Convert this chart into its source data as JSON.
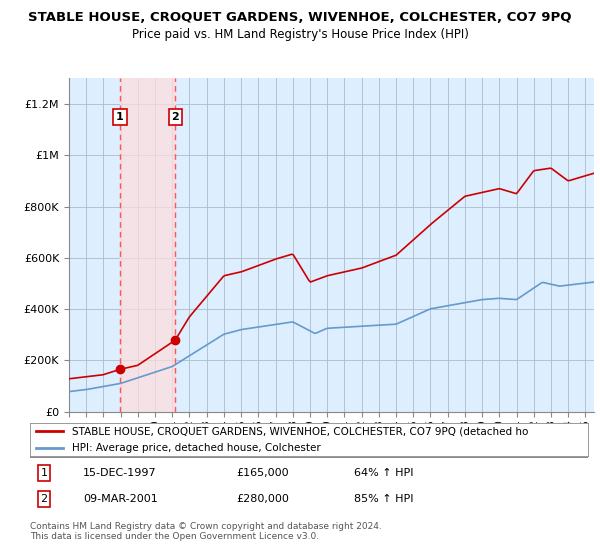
{
  "title": "STABLE HOUSE, CROQUET GARDENS, WIVENHOE, COLCHESTER, CO7 9PQ",
  "subtitle": "Price paid vs. HM Land Registry's House Price Index (HPI)",
  "title_fontsize": 9.5,
  "subtitle_fontsize": 8.5,
  "ylim": [
    0,
    1300000
  ],
  "yticks": [
    0,
    200000,
    400000,
    600000,
    800000,
    1000000,
    1200000
  ],
  "ytick_labels": [
    "£0",
    "£200K",
    "£400K",
    "£600K",
    "£800K",
    "£1M",
    "£1.2M"
  ],
  "xlim_start": 1995.0,
  "xlim_end": 2025.5,
  "background_color": "#ffffff",
  "plot_bg_color": "#ddeeff",
  "grid_color": "#aabbcc",
  "purchase1_year": 1997.96,
  "purchase1_price": 165000,
  "purchase1_label": "1",
  "purchase1_date": "15-DEC-1997",
  "purchase1_amount": "£165,000",
  "purchase1_hpi": "64% ↑ HPI",
  "purchase2_year": 2001.18,
  "purchase2_price": 280000,
  "purchase2_label": "2",
  "purchase2_date": "09-MAR-2001",
  "purchase2_amount": "£280,000",
  "purchase2_hpi": "85% ↑ HPI",
  "red_line_color": "#cc0000",
  "blue_line_color": "#6699cc",
  "vline_color": "#ff5555",
  "highlight_color": "#ffdddd",
  "legend_label_red": "STABLE HOUSE, CROQUET GARDENS, WIVENHOE, COLCHESTER, CO7 9PQ (detached ho",
  "legend_label_blue": "HPI: Average price, detached house, Colchester",
  "footnote": "Contains HM Land Registry data © Crown copyright and database right 2024.\nThis data is licensed under the Open Government Licence v3.0."
}
